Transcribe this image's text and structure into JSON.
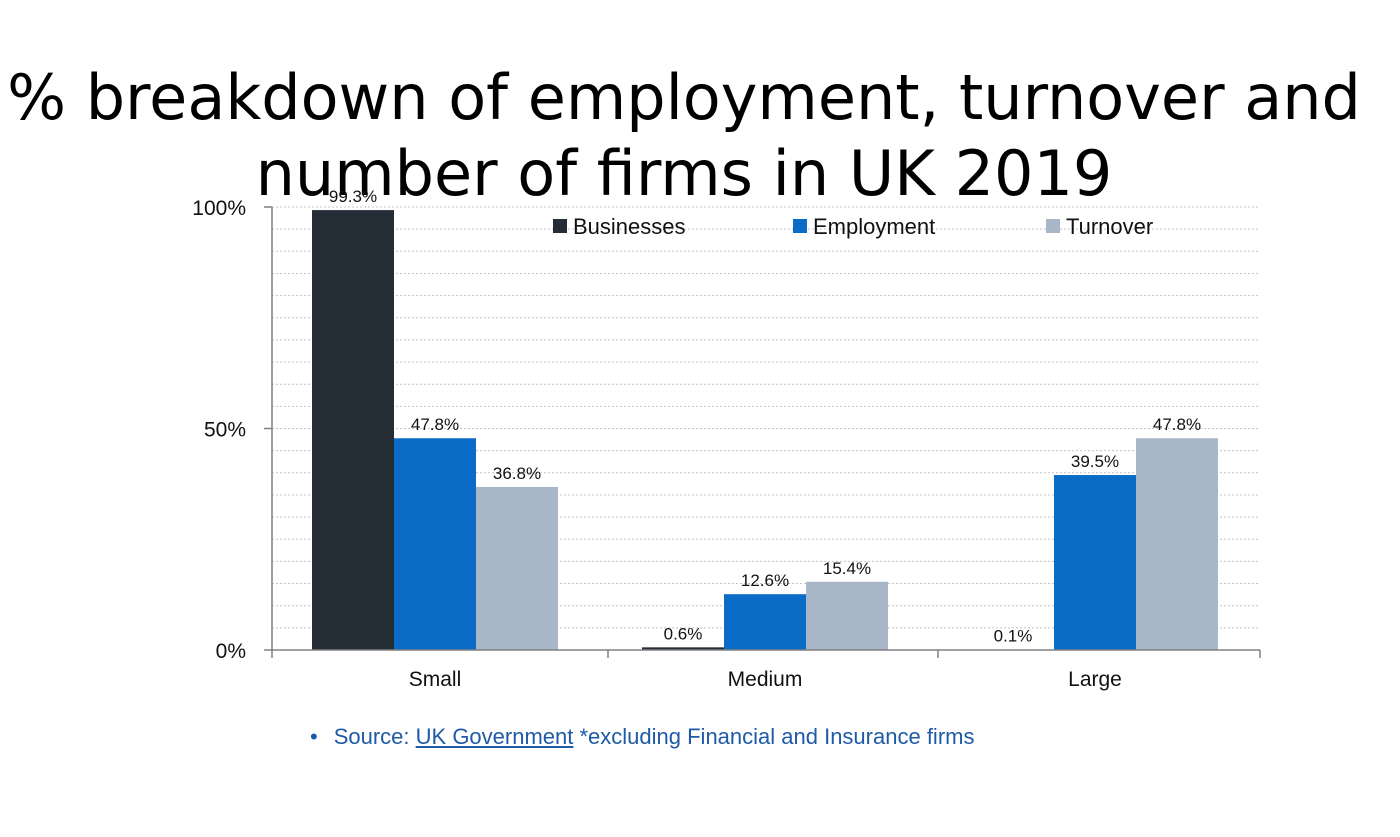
{
  "title": {
    "line1": "% breakdown of employment, turnover and",
    "line2": "number of firms in UK 2019"
  },
  "chart_data": {
    "type": "bar",
    "title": "% breakdown of employment, turnover and number of firms in UK 2019",
    "categories": [
      "Small",
      "Medium",
      "Large"
    ],
    "series": [
      {
        "name": "Businesses",
        "color": "#242d36",
        "values": [
          99.3,
          0.6,
          0.1
        ],
        "labels": [
          "99.3%",
          "0.6%",
          "0.1%"
        ]
      },
      {
        "name": "Employment",
        "color": "#0a6cc6",
        "values": [
          47.8,
          12.6,
          39.5
        ],
        "labels": [
          "47.8%",
          "12.6%",
          "39.5%"
        ]
      },
      {
        "name": "Turnover",
        "color": "#a8b6c8",
        "values": [
          36.8,
          15.4,
          47.8
        ],
        "labels": [
          "36.8%",
          "15.4%",
          "47.8%"
        ]
      }
    ],
    "ylim": [
      0,
      100
    ],
    "yticks": [
      0,
      50,
      100
    ],
    "ytick_labels": [
      "0%",
      "50%",
      "100%"
    ],
    "xlabel": "",
    "ylabel": "",
    "grid": true,
    "legend_position": "top-right"
  },
  "source": {
    "bullet": "•",
    "prefix": "Source: ",
    "link_text": "UK Government",
    "suffix": " *excluding Financial and Insurance firms"
  }
}
